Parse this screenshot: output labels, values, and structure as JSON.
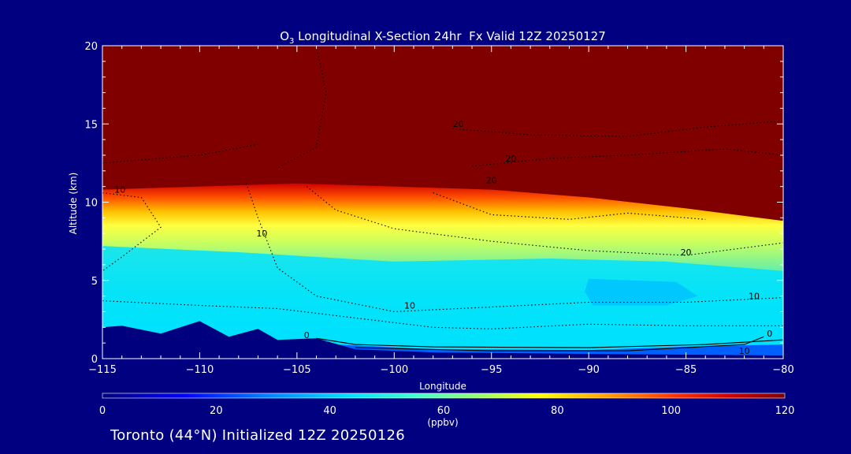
{
  "chart_data": {
    "type": "heatmap",
    "title_species": "O",
    "title_subscript": "3",
    "title_rest": " Longitudinal X-Section 24hr  Fx Valid 12Z 20250127",
    "xlabel": "Longitude",
    "ylabel": "Altitude (km)",
    "xlim": [
      -115,
      -80
    ],
    "ylim": [
      0,
      20
    ],
    "x_ticks": [
      -115,
      -110,
      -105,
      -100,
      -95,
      -90,
      -85,
      -80
    ],
    "x_tick_labels": [
      "−115",
      "−110",
      "−105",
      "−100",
      "−95",
      "−90",
      "−85",
      "−80"
    ],
    "y_ticks": [
      0,
      5,
      10,
      15,
      20
    ],
    "y_tick_labels": [
      "0",
      "5",
      "10",
      "15",
      "20"
    ],
    "tropopause_altitude_km": [
      {
        "lon": -115,
        "alt": 10.8
      },
      {
        "lon": -110,
        "alt": 11.0
      },
      {
        "lon": -105,
        "alt": 11.2
      },
      {
        "lon": -100,
        "alt": 11.0
      },
      {
        "lon": -95,
        "alt": 10.8
      },
      {
        "lon": -90,
        "alt": 10.3
      },
      {
        "lon": -85,
        "alt": 9.6
      },
      {
        "lon": -80,
        "alt": 8.8
      }
    ],
    "terrain_km": [
      {
        "lon": -115,
        "alt": 2.0
      },
      {
        "lon": -114,
        "alt": 2.1
      },
      {
        "lon": -112,
        "alt": 1.6
      },
      {
        "lon": -110,
        "alt": 2.4
      },
      {
        "lon": -108.5,
        "alt": 1.4
      },
      {
        "lon": -107,
        "alt": 1.9
      },
      {
        "lon": -106,
        "alt": 1.2
      },
      {
        "lon": -104,
        "alt": 1.3
      },
      {
        "lon": -102,
        "alt": 0.6
      },
      {
        "lon": -98,
        "alt": 0.4
      },
      {
        "lon": -90,
        "alt": 0.3
      },
      {
        "lon": -85,
        "alt": 0.25
      },
      {
        "lon": -80,
        "alt": 0.2
      }
    ],
    "contour_labels": [
      {
        "text": "10",
        "lon": -114.1,
        "alt": 10.6
      },
      {
        "text": "10",
        "lon": -106.8,
        "alt": 7.8
      },
      {
        "text": "20",
        "lon": -96.7,
        "alt": 14.8
      },
      {
        "text": "20",
        "lon": -94.0,
        "alt": 12.6
      },
      {
        "text": "20",
        "lon": -95.0,
        "alt": 11.2
      },
      {
        "text": "20",
        "lon": -85.0,
        "alt": 6.6
      },
      {
        "text": "10",
        "lon": -99.2,
        "alt": 3.2
      },
      {
        "text": "10",
        "lon": -81.5,
        "alt": 3.8
      },
      {
        "text": "0",
        "lon": -104.5,
        "alt": 1.3
      },
      {
        "text": "0",
        "lon": -80.7,
        "alt": 1.4
      },
      {
        "text": "10",
        "lon": -82.0,
        "alt": 0.3
      }
    ],
    "colorbar": {
      "min": 0,
      "max": 120,
      "ticks": [
        0,
        20,
        40,
        60,
        80,
        100,
        120
      ],
      "tick_labels": [
        "0",
        "20",
        "40",
        "60",
        "80",
        "100",
        "120"
      ],
      "unit_label": "(ppbv)"
    }
  },
  "footer": {
    "text": "Toronto (44°N) Initialized 12Z 20250126"
  },
  "colors": {
    "background": "#000080",
    "stratosphere": "#800000",
    "terrain": "#00007f"
  }
}
